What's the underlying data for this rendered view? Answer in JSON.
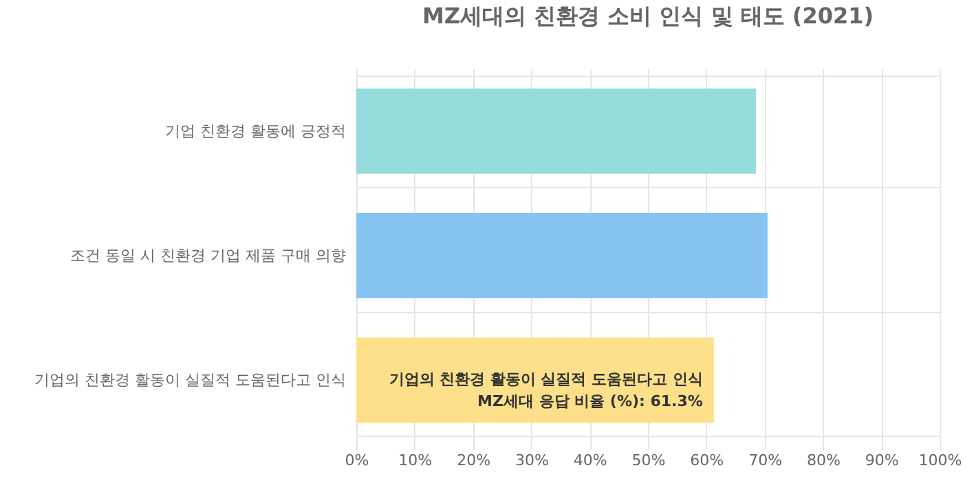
{
  "chart_data": {
    "type": "bar",
    "orientation": "horizontal",
    "title": "MZ세대의 친환경 소비 인식 및 태도 (2021)",
    "categories": [
      "기업 친환경 활동에 긍정적",
      "조건 동일 시 친환경 기업 제품 구매 의향",
      "기업의 친환경 활동이 실질적 도움된다고 인식"
    ],
    "values": [
      68.5,
      70.5,
      61.3
    ],
    "colors": [
      "#96dbdb",
      "#86c5f2",
      "#ffe08a"
    ],
    "xlim": [
      0,
      100
    ],
    "xticks": [
      {
        "value": 0,
        "label": "0%"
      },
      {
        "value": 10,
        "label": "10%"
      },
      {
        "value": 20,
        "label": "20%"
      },
      {
        "value": 30,
        "label": "30%"
      },
      {
        "value": 40,
        "label": "40%"
      },
      {
        "value": 50,
        "label": "50%"
      },
      {
        "value": 60,
        "label": "60%"
      },
      {
        "value": 70,
        "label": "70%"
      },
      {
        "value": 80,
        "label": "80%"
      },
      {
        "value": 90,
        "label": "90%"
      },
      {
        "value": 100,
        "label": "100%"
      }
    ],
    "annotations": [
      {
        "text": "기업의 친환경 활동이 실질적 도움된다고 인식\nMZ세대 응답 비율 (%): 61.3%",
        "x": 61.3,
        "y": "기업의 친환경 활동이 실질적 도움된다고 인식"
      }
    ],
    "grid": true,
    "legend": false
  }
}
